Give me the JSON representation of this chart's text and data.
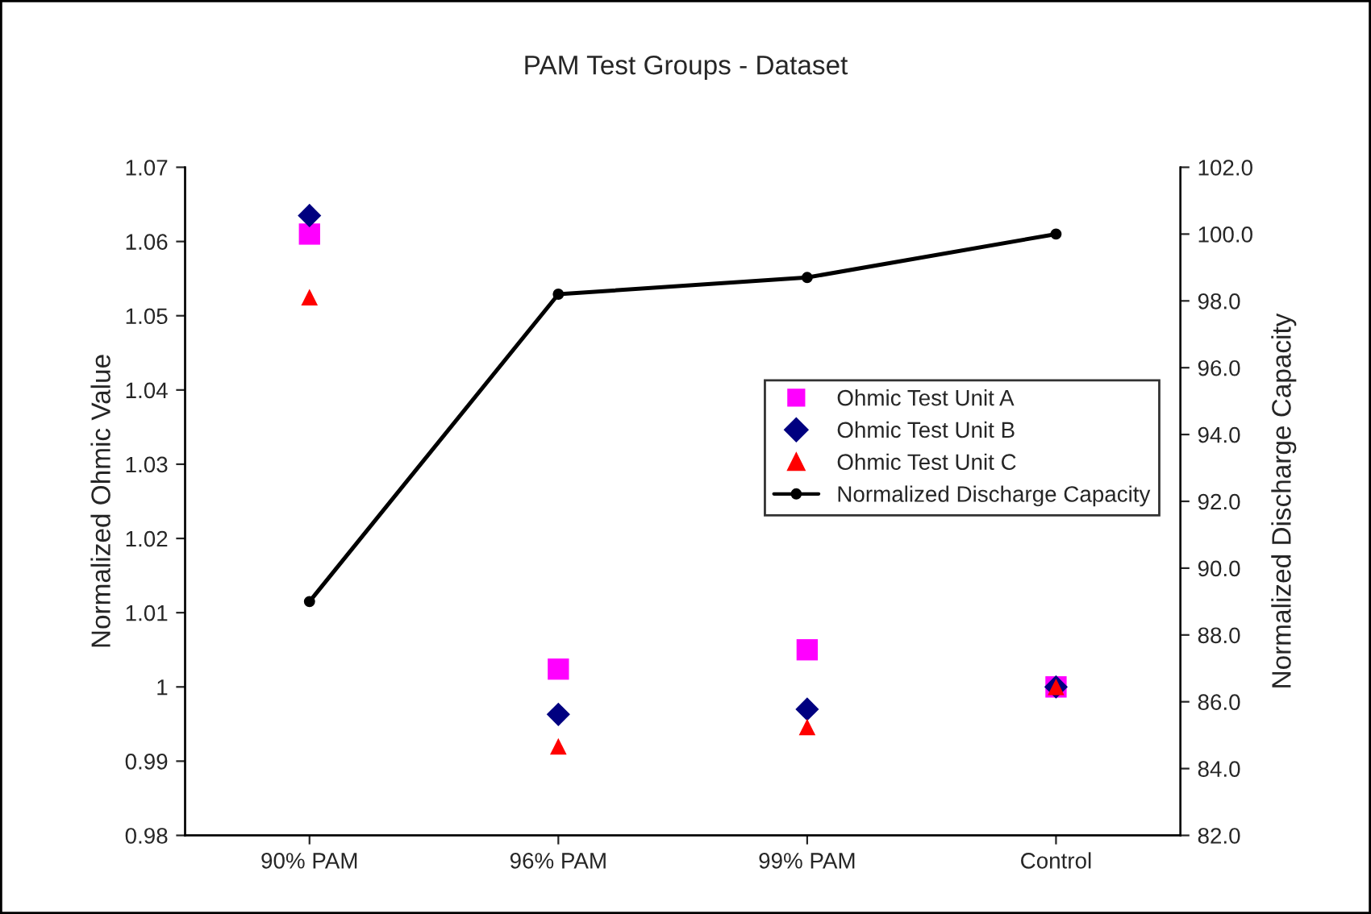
{
  "chart_data": {
    "type": "scatter",
    "title": "PAM Test Groups - Dataset",
    "ylabel": "Normalized Ohmic Value",
    "y2label": "Normalized Discharge Capacity",
    "categories": [
      "90% PAM",
      "96% PAM",
      "99% PAM",
      "Control"
    ],
    "series": [
      {
        "name": "Ohmic Test Unit A",
        "color": "#ff00ff",
        "marker": "square",
        "values": [
          1.061,
          1.0024,
          1.005,
          1.0
        ]
      },
      {
        "name": "Ohmic Test Unit B",
        "color": "#000080",
        "marker": "diamond",
        "values": [
          1.0635,
          0.9963,
          0.997,
          1.0
        ]
      },
      {
        "name": "Ohmic Test Unit C",
        "color": "#ff0000",
        "marker": "triangle",
        "values": [
          1.0525,
          0.992,
          0.9946,
          1.0
        ]
      },
      {
        "name": "Normalized Discharge Capacity",
        "type": "line",
        "axis": "y2",
        "color": "#000000",
        "marker": "circle",
        "line_style": "solid",
        "values": [
          89.0,
          98.2,
          98.7,
          100.0
        ]
      }
    ],
    "ylim": [
      0.98,
      1.07
    ],
    "yticks": [
      {
        "value": 0.98,
        "label": "0.98"
      },
      {
        "value": 0.99,
        "label": "0.99"
      },
      {
        "value": 1.0,
        "label": "1"
      },
      {
        "value": 1.01,
        "label": "1.01"
      },
      {
        "value": 1.02,
        "label": "1.02"
      },
      {
        "value": 1.03,
        "label": "1.03"
      },
      {
        "value": 1.04,
        "label": "1.04"
      },
      {
        "value": 1.05,
        "label": "1.05"
      },
      {
        "value": 1.06,
        "label": "1.06"
      },
      {
        "value": 1.07,
        "label": "1.07"
      }
    ],
    "y2lim": [
      82,
      102
    ],
    "y2ticks": [
      {
        "value": 82,
        "label": "82.0"
      },
      {
        "value": 84,
        "label": "84.0"
      },
      {
        "value": 86,
        "label": "86.0"
      },
      {
        "value": 88,
        "label": "88.0"
      },
      {
        "value": 90,
        "label": "90.0"
      },
      {
        "value": 92,
        "label": "92.0"
      },
      {
        "value": 94,
        "label": "94.0"
      },
      {
        "value": 96,
        "label": "96.0"
      },
      {
        "value": 98,
        "label": "98.0"
      },
      {
        "value": 100,
        "label": "100.0"
      },
      {
        "value": 102,
        "label": "102.0"
      }
    ],
    "grid": false,
    "legend": "right"
  }
}
